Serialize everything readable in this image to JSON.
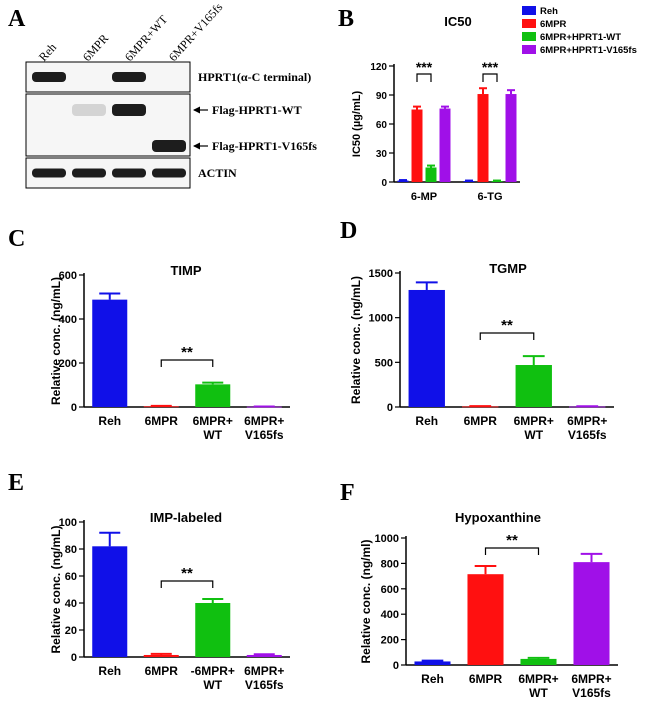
{
  "figure": {
    "panel_labels": [
      "A",
      "B",
      "C",
      "D",
      "E",
      "F"
    ]
  },
  "blot": {
    "lanes": [
      "Reh",
      "6MPR",
      "6MPR+WT",
      "6MPR+V165fs"
    ],
    "rows": [
      {
        "label": "HPRT1(α-C terminal)",
        "bands": [
          1,
          0,
          1,
          0
        ]
      },
      {
        "label": "Flag-HPRT1-WT",
        "bands": [
          0,
          0.15,
          1,
          0
        ]
      },
      {
        "label": "Flag-HPRT1-V165fs",
        "bands": [
          0,
          0,
          0,
          1
        ]
      },
      {
        "label": "ACTIN",
        "bands": [
          1,
          1,
          1,
          1
        ]
      }
    ]
  },
  "chart_data": [
    {
      "id": "B",
      "type": "bar",
      "title": "IC50",
      "ylabel": "IC50 (µg/mL)",
      "categories": [
        "6-MP",
        "6-TG"
      ],
      "ylim": [
        0,
        120
      ],
      "yticks": [
        0,
        30,
        60,
        90,
        120
      ],
      "legend": "top-right",
      "series": [
        {
          "name": "Reh",
          "color": "#1010e8",
          "values": [
            1.5,
            1
          ]
        },
        {
          "name": "6MPR",
          "color": "#ff1010",
          "values": [
            75,
            91
          ]
        },
        {
          "name": "6MPR+HPRT1-WT",
          "color": "#10c010",
          "values": [
            15,
            1
          ]
        },
        {
          "name": "6MPR+HPRT1-V165fs",
          "color": "#a010e8",
          "values": [
            76,
            91
          ]
        }
      ],
      "errors": [
        [
          0.5,
          0.5
        ],
        [
          3,
          6
        ],
        [
          2,
          0.5
        ],
        [
          2,
          4
        ]
      ],
      "significance": [
        {
          "category": 0,
          "from": 1,
          "to": 2,
          "label": "***"
        },
        {
          "category": 1,
          "from": 1,
          "to": 2,
          "label": "***"
        }
      ]
    },
    {
      "id": "C",
      "type": "bar",
      "title": "TIMP",
      "ylabel": "Relative conc. (ng/mL)",
      "categories": [
        "Reh",
        "6MPR",
        "6MPR+\nWT",
        "6MPR+\nV165fs"
      ],
      "colors": [
        "#1010e8",
        "#ff1010",
        "#10c010",
        "#a010e8"
      ],
      "values": [
        488,
        3,
        103,
        1.5
      ],
      "errors": [
        28,
        2,
        8,
        1
      ],
      "ylim": [
        0,
        600
      ],
      "yticks": [
        0,
        200,
        400,
        600
      ],
      "significance": [
        {
          "from": 1,
          "to": 2,
          "label": "**"
        }
      ]
    },
    {
      "id": "D",
      "type": "bar",
      "title": "TGMP",
      "ylabel": "Relative conc. (ng/mL)",
      "categories": [
        "Reh",
        "6MPR",
        "6MPR+\nWT",
        "6MPR+\nV165fs"
      ],
      "colors": [
        "#1010e8",
        "#ff1010",
        "#10c010",
        "#a010e8"
      ],
      "values": [
        1310,
        6,
        470,
        5
      ],
      "errors": [
        85,
        4,
        100,
        4
      ],
      "ylim": [
        0,
        1500
      ],
      "yticks": [
        0,
        500,
        1000,
        1500
      ],
      "significance": [
        {
          "from": 1,
          "to": 2,
          "label": "**"
        }
      ]
    },
    {
      "id": "E",
      "type": "bar",
      "title": "IMP-labeled",
      "ylabel": "Relative conc. (ng/mL)",
      "categories": [
        "Reh",
        "6MPR",
        "-6MPR+\nWT",
        "6MPR+\nV165fs"
      ],
      "colors": [
        "#1010e8",
        "#ff1010",
        "#10c010",
        "#a010e8"
      ],
      "values": [
        82,
        1.5,
        40,
        1.5
      ],
      "errors": [
        10,
        0.8,
        3,
        0.5
      ],
      "ylim": [
        0,
        100
      ],
      "yticks": [
        0,
        20,
        40,
        60,
        80,
        100
      ],
      "significance": [
        {
          "from": 1,
          "to": 2,
          "label": "**"
        }
      ]
    },
    {
      "id": "F",
      "type": "bar",
      "title": "Hypoxanthine",
      "ylabel": "Relative conc. (ng/ml)",
      "categories": [
        "Reh",
        "6MPR",
        "6MPR+\nWT",
        "6MPR+\nV165fs"
      ],
      "colors": [
        "#1010e8",
        "#ff1010",
        "#10c010",
        "#a010e8"
      ],
      "values": [
        28,
        715,
        48,
        810
      ],
      "errors": [
        6,
        65,
        8,
        65
      ],
      "ylim": [
        0,
        1000
      ],
      "yticks": [
        0,
        200,
        400,
        600,
        800,
        1000
      ],
      "significance": [
        {
          "from": 1,
          "to": 2,
          "label": "**"
        }
      ]
    }
  ]
}
